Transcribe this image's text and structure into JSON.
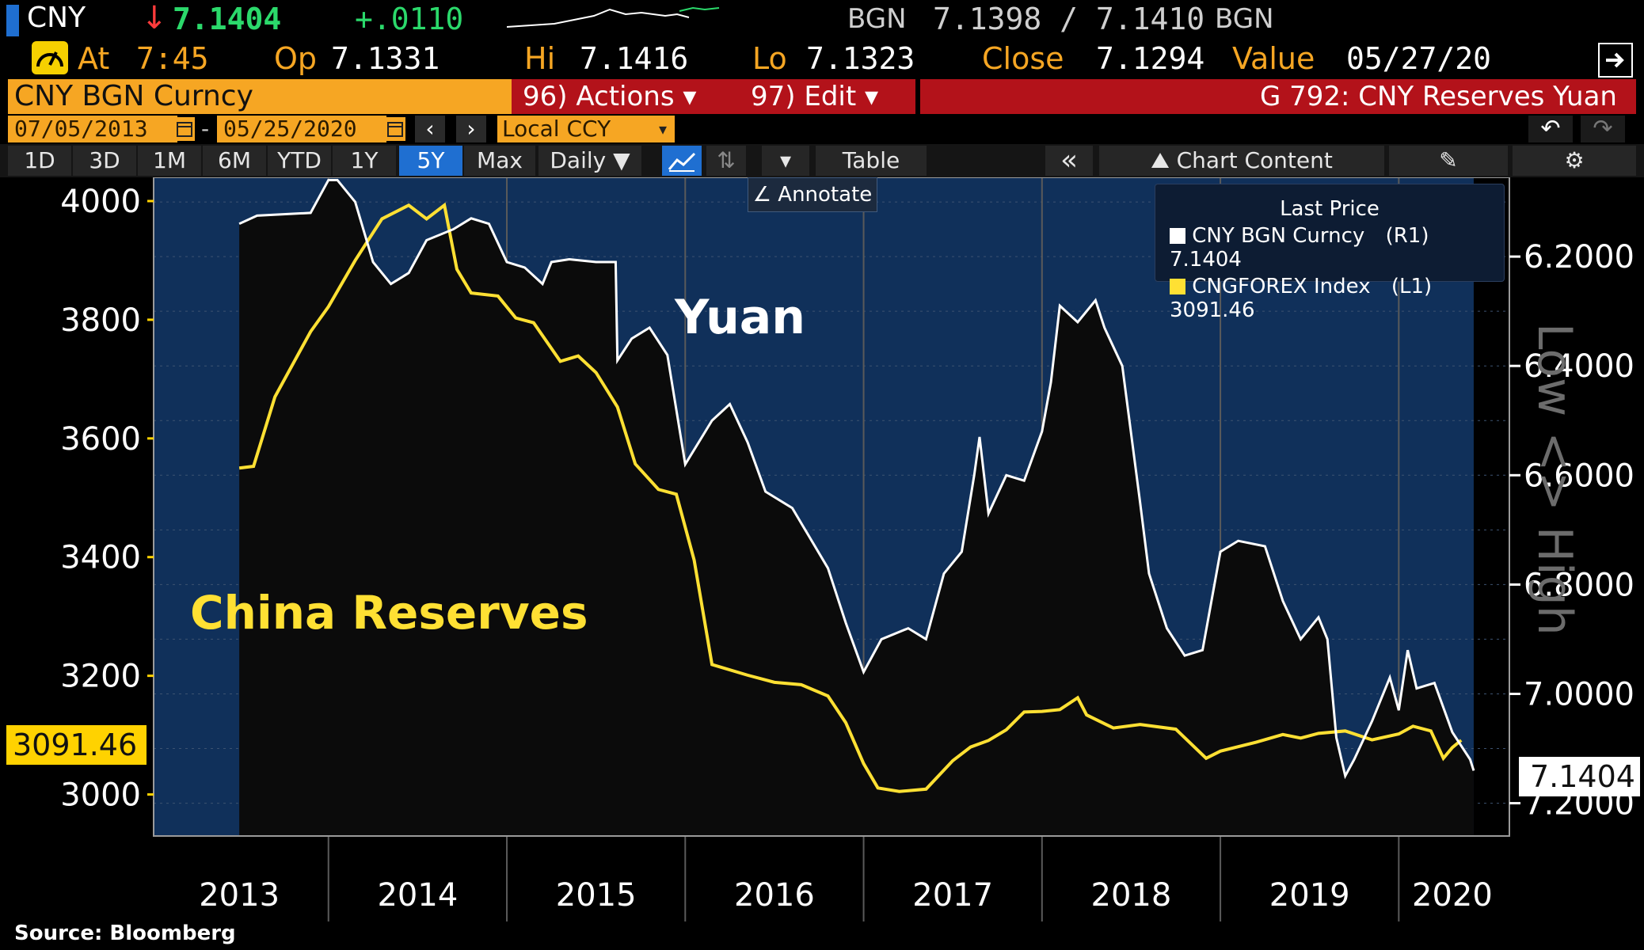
{
  "header": {
    "ticker": "CNY",
    "arrow": "↓",
    "last": "7.1404",
    "change": "+.0110",
    "bgn_label_left": "BGN",
    "bid_ask": "7.1398 / 7.1410",
    "bgn_label_right": "BGN",
    "at_label": "At",
    "at_time": "7:45",
    "op_label": "Op",
    "op_value": "7.1331",
    "hi_label": "Hi",
    "hi_value": "7.1416",
    "lo_label": "Lo",
    "lo_value": "7.1323",
    "close_label": "Close",
    "close_value": "7.1294",
    "value_label": "Value",
    "value_date": "05/27/20"
  },
  "command_bar": {
    "security": "CNY BGN Curncy",
    "actions": "96) Actions ▾",
    "edit": "97) Edit ▾",
    "graph_title": "G 792: CNY Reserves Yuan"
  },
  "date_bar": {
    "start": "07/05/2013",
    "end": "05/25/2020",
    "currency": "Local CCY",
    "dash": "-"
  },
  "toolbar": {
    "ranges": [
      "1D",
      "3D",
      "1M",
      "6M",
      "YTD",
      "1Y",
      "5Y",
      "Max"
    ],
    "active_range": "5Y",
    "frequency": "Daily ▼",
    "table": "Table",
    "chart_content": "Chart Content",
    "annotate": "Annotate",
    "collapse": "«"
  },
  "colors": {
    "background": "#000000",
    "plot_panel": "#10305a",
    "orange": "#f6a623",
    "red_bar": "#b3121a",
    "yuan_line": "#ffffff",
    "reserves_line": "#ffe033"
  },
  "icons": [
    "bars-icon",
    "speedometer-icon",
    "calendar-icon",
    "chevron-left-icon",
    "chevron-right-icon",
    "chart-line-icon",
    "settings-icon",
    "undo-icon",
    "redo-icon",
    "export-icon",
    "pencil-icon"
  ],
  "chart_data": {
    "type": "line",
    "x_years": [
      "2013",
      "2014",
      "2015",
      "2016",
      "2017",
      "2018",
      "2019",
      "2020"
    ],
    "left_axis": {
      "ticks": [
        "4000",
        "3800",
        "3600",
        "3400",
        "3200",
        "3000"
      ],
      "ylim": [
        2930,
        4040
      ]
    },
    "right_axis": {
      "ticks": [
        "6.2000",
        "6.4000",
        "6.6000",
        "6.8000",
        "7.0000",
        "7.2000"
      ],
      "ylim": [
        6.055,
        7.26
      ],
      "inverted": true,
      "label": "Low <> High"
    },
    "legend_title": "Last Price",
    "legend": [
      {
        "name": "CNY BGN Curncy",
        "axis": "(R1)",
        "value": "7.1404"
      },
      {
        "name": "CNGFOREX Index",
        "axis": "(L1)",
        "value": "3091.46"
      }
    ],
    "last_label_left": "3091.46",
    "last_label_right": "7.1404",
    "annotation_yuan": "Yuan",
    "annotation_reserves": "China Reserves",
    "source": "Source: Bloomberg",
    "series": [
      {
        "name": "CNY BGN Curncy",
        "axis": "right",
        "points": [
          [
            2013.5,
            6.14
          ],
          [
            2013.6,
            6.125
          ],
          [
            2013.9,
            6.12
          ],
          [
            2014.0,
            6.06
          ],
          [
            2014.05,
            6.06
          ],
          [
            2014.15,
            6.1
          ],
          [
            2014.25,
            6.21
          ],
          [
            2014.35,
            6.25
          ],
          [
            2014.45,
            6.23
          ],
          [
            2014.55,
            6.17
          ],
          [
            2014.7,
            6.15
          ],
          [
            2014.8,
            6.13
          ],
          [
            2014.9,
            6.14
          ],
          [
            2015.0,
            6.21
          ],
          [
            2015.1,
            6.22
          ],
          [
            2015.2,
            6.25
          ],
          [
            2015.25,
            6.21
          ],
          [
            2015.35,
            6.205
          ],
          [
            2015.5,
            6.21
          ],
          [
            2015.61,
            6.21
          ],
          [
            2015.62,
            6.39
          ],
          [
            2015.7,
            6.35
          ],
          [
            2015.8,
            6.33
          ],
          [
            2015.9,
            6.38
          ],
          [
            2016.0,
            6.58
          ],
          [
            2016.15,
            6.5
          ],
          [
            2016.25,
            6.47
          ],
          [
            2016.35,
            6.54
          ],
          [
            2016.45,
            6.63
          ],
          [
            2016.6,
            6.66
          ],
          [
            2016.8,
            6.77
          ],
          [
            2016.9,
            6.87
          ],
          [
            2017.0,
            6.96
          ],
          [
            2017.1,
            6.9
          ],
          [
            2017.25,
            6.88
          ],
          [
            2017.35,
            6.9
          ],
          [
            2017.45,
            6.78
          ],
          [
            2017.55,
            6.74
          ],
          [
            2017.62,
            6.6
          ],
          [
            2017.65,
            6.53
          ],
          [
            2017.7,
            6.67
          ],
          [
            2017.8,
            6.6
          ],
          [
            2017.9,
            6.61
          ],
          [
            2018.0,
            6.52
          ],
          [
            2018.05,
            6.43
          ],
          [
            2018.1,
            6.29
          ],
          [
            2018.2,
            6.32
          ],
          [
            2018.3,
            6.28
          ],
          [
            2018.35,
            6.33
          ],
          [
            2018.45,
            6.4
          ],
          [
            2018.55,
            6.65
          ],
          [
            2018.6,
            6.78
          ],
          [
            2018.7,
            6.88
          ],
          [
            2018.8,
            6.93
          ],
          [
            2018.9,
            6.92
          ],
          [
            2019.0,
            6.74
          ],
          [
            2019.1,
            6.72
          ],
          [
            2019.25,
            6.73
          ],
          [
            2019.35,
            6.83
          ],
          [
            2019.45,
            6.9
          ],
          [
            2019.55,
            6.86
          ],
          [
            2019.6,
            6.9
          ],
          [
            2019.65,
            7.08
          ],
          [
            2019.7,
            7.15
          ],
          [
            2019.75,
            7.12
          ],
          [
            2019.85,
            7.05
          ],
          [
            2019.95,
            6.97
          ],
          [
            2020.0,
            7.03
          ],
          [
            2020.05,
            6.92
          ],
          [
            2020.1,
            6.99
          ],
          [
            2020.2,
            6.98
          ],
          [
            2020.3,
            7.07
          ],
          [
            2020.4,
            7.12
          ],
          [
            2020.42,
            7.1404
          ]
        ]
      },
      {
        "name": "CNGFOREX Index",
        "axis": "left",
        "points": [
          [
            2013.5,
            3550
          ],
          [
            2013.58,
            3553
          ],
          [
            2013.7,
            3670
          ],
          [
            2013.9,
            3780
          ],
          [
            2014.0,
            3822
          ],
          [
            2014.15,
            3900
          ],
          [
            2014.3,
            3970
          ],
          [
            2014.45,
            3993
          ],
          [
            2014.55,
            3970
          ],
          [
            2014.65,
            3993
          ],
          [
            2014.72,
            3885
          ],
          [
            2014.8,
            3845
          ],
          [
            2014.95,
            3840
          ],
          [
            2015.05,
            3803
          ],
          [
            2015.15,
            3795
          ],
          [
            2015.3,
            3730
          ],
          [
            2015.4,
            3739
          ],
          [
            2015.5,
            3711
          ],
          [
            2015.62,
            3653
          ],
          [
            2015.72,
            3557
          ],
          [
            2015.85,
            3514
          ],
          [
            2015.95,
            3506
          ],
          [
            2016.05,
            3395
          ],
          [
            2016.15,
            3219
          ],
          [
            2016.35,
            3201
          ],
          [
            2016.5,
            3189
          ],
          [
            2016.65,
            3185
          ],
          [
            2016.8,
            3166
          ],
          [
            2016.9,
            3121
          ],
          [
            2017.0,
            3052
          ],
          [
            2017.08,
            3011
          ],
          [
            2017.2,
            3005
          ],
          [
            2017.35,
            3009
          ],
          [
            2017.5,
            3057
          ],
          [
            2017.6,
            3080
          ],
          [
            2017.7,
            3091
          ],
          [
            2017.8,
            3109
          ],
          [
            2017.9,
            3139
          ],
          [
            2018.0,
            3140
          ],
          [
            2018.1,
            3143
          ],
          [
            2018.2,
            3163
          ],
          [
            2018.25,
            3134
          ],
          [
            2018.4,
            3112
          ],
          [
            2018.55,
            3118
          ],
          [
            2018.75,
            3110
          ],
          [
            2018.92,
            3061
          ],
          [
            2019.0,
            3073
          ],
          [
            2019.2,
            3088
          ],
          [
            2019.35,
            3101
          ],
          [
            2019.45,
            3095
          ],
          [
            2019.55,
            3103
          ],
          [
            2019.7,
            3107
          ],
          [
            2019.85,
            3092
          ],
          [
            2020.0,
            3102
          ],
          [
            2020.08,
            3115
          ],
          [
            2020.18,
            3107
          ],
          [
            2020.25,
            3061
          ],
          [
            2020.3,
            3079
          ],
          [
            2020.35,
            3091.46
          ]
        ]
      }
    ]
  }
}
